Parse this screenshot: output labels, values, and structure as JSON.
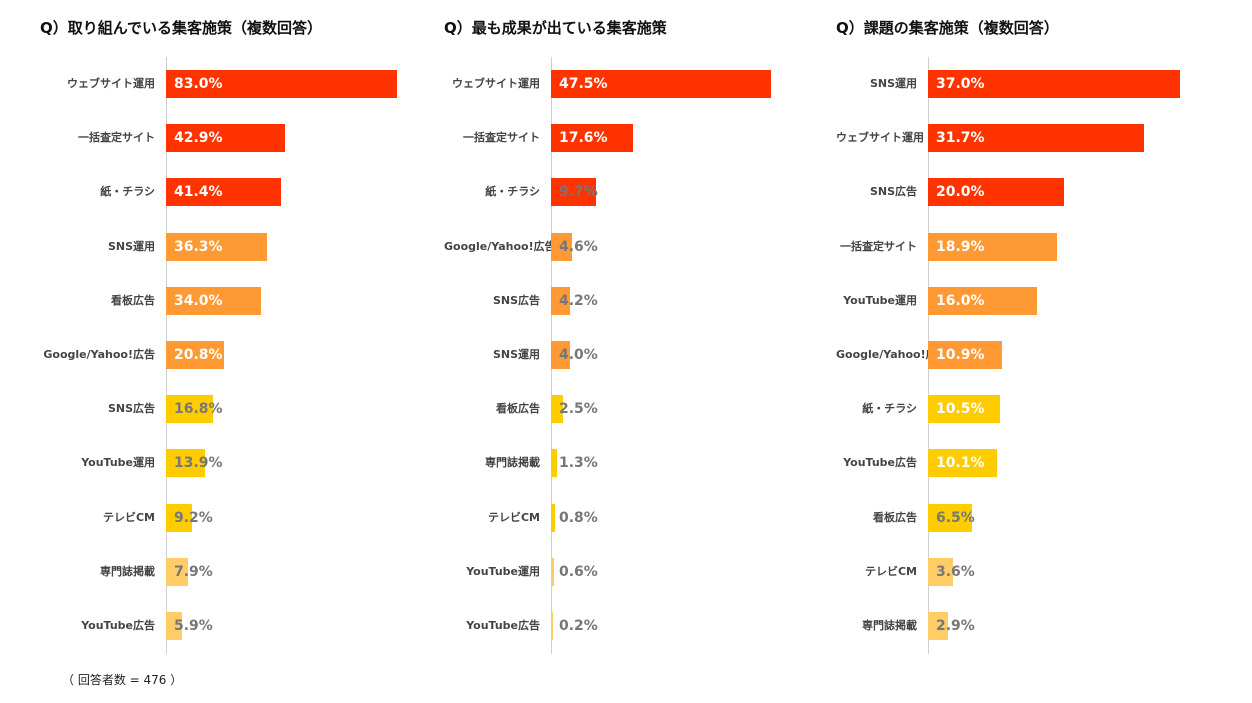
{
  "note": "（ 回答者数 = 476 ）",
  "colors": {
    "red": "#ff3300",
    "orange": "#ff9933",
    "yellow": "#ffcc00",
    "light_yellow": "#ffcc66",
    "label_white": "#ffffff",
    "label_gray": "#777777"
  },
  "chart_data": [
    {
      "type": "bar",
      "orientation": "horizontal",
      "title": "Q）取り組んでいる集客施策（複数回答）",
      "xlim": [
        0,
        100
      ],
      "categories": [
        "ウェブサイト運用",
        "一括査定サイト",
        "紙・チラシ",
        "SNS運用",
        "看板広告",
        "Google/Yahoo!広告",
        "SNS広告",
        "YouTube運用",
        "テレビCM",
        "専門誌掲載",
        "YouTube広告"
      ],
      "values": [
        83.0,
        42.9,
        41.4,
        36.3,
        34.0,
        20.8,
        16.8,
        13.9,
        9.2,
        7.9,
        5.9
      ],
      "value_labels": [
        "83.0%",
        "42.9%",
        "41.4%",
        "36.3%",
        "34.0%",
        "20.8%",
        "16.8%",
        "13.9%",
        "9.2%",
        "7.9%",
        "5.9%"
      ],
      "bar_colors": [
        "#ff3300",
        "#ff3300",
        "#ff3300",
        "#ff9933",
        "#ff9933",
        "#ff9933",
        "#ffcc00",
        "#ffcc00",
        "#ffcc00",
        "#ffcc66",
        "#ffcc66"
      ]
    },
    {
      "type": "bar",
      "orientation": "horizontal",
      "title": "Q）最も成果が出ている集客施策",
      "xlim": [
        0,
        100
      ],
      "categories": [
        "ウェブサイト運用",
        "一括査定サイト",
        "紙・チラシ",
        "Google/Yahoo!広告",
        "SNS広告",
        "SNS運用",
        "看板広告",
        "専門誌掲載",
        "テレビCM",
        "YouTube運用",
        "YouTube広告"
      ],
      "values": [
        47.5,
        17.6,
        9.7,
        4.6,
        4.2,
        4.0,
        2.5,
        1.3,
        0.8,
        0.6,
        0.2
      ],
      "value_labels": [
        "47.5%",
        "17.6%",
        "9.7%",
        "4.6%",
        "4.2%",
        "4.0%",
        "2.5%",
        "1.3%",
        "0.8%",
        "0.6%",
        "0.2%"
      ],
      "bar_colors": [
        "#ff3300",
        "#ff3300",
        "#ff3300",
        "#ff9933",
        "#ff9933",
        "#ff9933",
        "#ffcc00",
        "#ffcc00",
        "#ffcc00",
        "#ffcc66",
        "#ffcc66"
      ]
    },
    {
      "type": "bar",
      "orientation": "horizontal",
      "title": "Q）課題の集客施策（複数回答）",
      "xlim": [
        0,
        100
      ],
      "categories": [
        "SNS運用",
        "ウェブサイト運用",
        "SNS広告",
        "一括査定サイト",
        "YouTube運用",
        "Google/Yahoo!広告",
        "紙・チラシ",
        "YouTube広告",
        "看板広告",
        "テレビCM",
        "専門誌掲載"
      ],
      "values": [
        37.0,
        31.7,
        20.0,
        18.9,
        16.0,
        10.9,
        10.5,
        10.1,
        6.5,
        3.6,
        2.9
      ],
      "value_labels": [
        "37.0%",
        "31.7%",
        "20.0%",
        "18.9%",
        "16.0%",
        "10.9%",
        "10.5%",
        "10.1%",
        "6.5%",
        "3.6%",
        "2.9%"
      ],
      "bar_colors": [
        "#ff3300",
        "#ff3300",
        "#ff3300",
        "#ff9933",
        "#ff9933",
        "#ff9933",
        "#ffcc00",
        "#ffcc00",
        "#ffcc00",
        "#ffcc66",
        "#ffcc66"
      ]
    }
  ]
}
